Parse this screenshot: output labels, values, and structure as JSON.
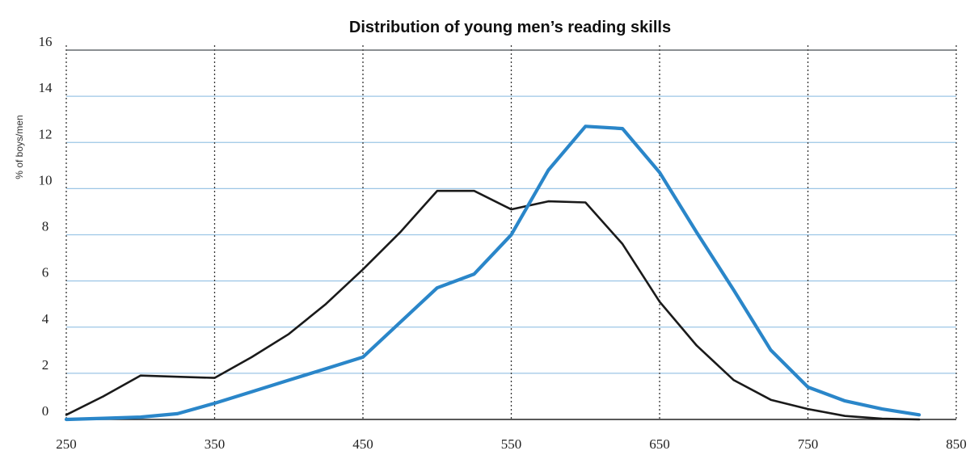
{
  "chart_data": {
    "type": "line",
    "title": "Distribution of young men’s reading skills",
    "xlabel": "",
    "ylabel": "% of boys/men",
    "xlim": [
      250,
      850
    ],
    "ylim": [
      0,
      16
    ],
    "x_ticks": [
      250,
      350,
      450,
      550,
      650,
      750,
      850
    ],
    "y_ticks": [
      0,
      2,
      4,
      6,
      8,
      10,
      12,
      14,
      16
    ],
    "grid": "horizontal solid, vertical dotted",
    "legend": "none",
    "series": [
      {
        "color": "#1a1a1a",
        "x": [
          250,
          275,
          300,
          325,
          350,
          375,
          400,
          425,
          450,
          475,
          500,
          525,
          550,
          575,
          600,
          625,
          650,
          675,
          700,
          725,
          750,
          775,
          800,
          825
        ],
        "y": [
          0.2,
          1.0,
          1.9,
          1.85,
          1.8,
          2.7,
          3.7,
          5.0,
          6.5,
          8.1,
          9.9,
          9.9,
          9.1,
          9.45,
          9.4,
          7.6,
          5.1,
          3.2,
          1.7,
          0.85,
          0.45,
          0.15,
          0.03,
          0.0
        ]
      },
      {
        "color": "#2a86c9",
        "x": [
          250,
          275,
          300,
          325,
          350,
          375,
          400,
          425,
          450,
          475,
          500,
          525,
          550,
          575,
          600,
          625,
          650,
          675,
          700,
          725,
          750,
          775,
          800,
          825
        ],
        "y": [
          0.0,
          0.05,
          0.1,
          0.25,
          0.7,
          1.2,
          1.7,
          2.2,
          2.7,
          4.2,
          5.7,
          6.3,
          8.0,
          10.8,
          12.7,
          12.6,
          10.7,
          8.1,
          5.6,
          3.0,
          1.4,
          0.8,
          0.45,
          0.2
        ]
      }
    ]
  }
}
